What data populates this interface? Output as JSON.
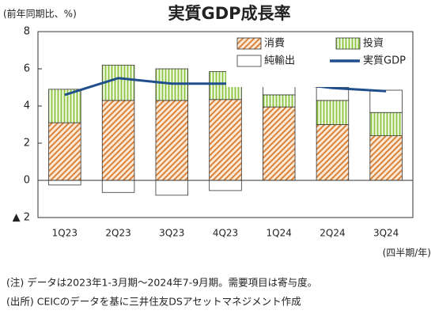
{
  "chart_data": {
    "type": "stacked-bar-line",
    "title": "実質GDP成長率",
    "y_label": "(前年同期比、%)",
    "x_label": "(四半期/年)",
    "categories": [
      "1Q23",
      "2Q23",
      "3Q23",
      "4Q23",
      "1Q24",
      "2Q24",
      "3Q24"
    ],
    "series": [
      {
        "name": "消費",
        "color": "#d9823b",
        "kind": "bar",
        "values": [
          3.1,
          4.3,
          4.3,
          4.35,
          3.95,
          3.0,
          2.4
        ]
      },
      {
        "name": "投資",
        "color": "#8dc63f",
        "kind": "bar",
        "values": [
          1.8,
          1.9,
          1.7,
          1.5,
          0.65,
          1.3,
          1.25
        ]
      },
      {
        "name": "純輸出",
        "color": "#ffffff",
        "kind": "bar",
        "values": [
          -0.25,
          -0.65,
          -0.8,
          -0.55,
          0.7,
          0.7,
          1.2
        ]
      },
      {
        "name": "実質GDP",
        "color": "#1f4e8c",
        "kind": "line",
        "values": [
          4.6,
          5.5,
          5.2,
          5.2,
          5.3,
          4.97,
          4.8
        ]
      }
    ],
    "ylim": [
      -2,
      8
    ],
    "yticks": [
      {
        "value": -2,
        "label": "▲ 2"
      },
      0,
      2,
      4,
      6,
      8
    ],
    "notes": [
      "(注) データは2023年1-3月期～2024年7-9月期。需要項目は寄与度。",
      "(出所) CEICのデータを基に三井住友DSアセットマネジメント作成"
    ]
  }
}
